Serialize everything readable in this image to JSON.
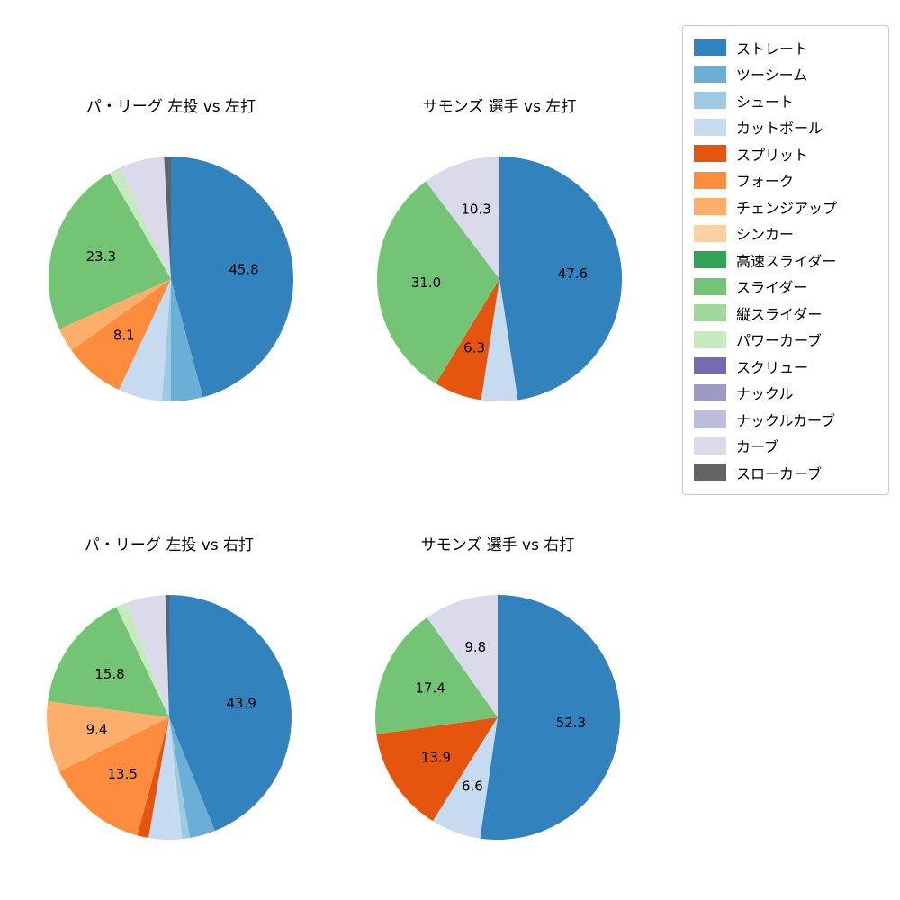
{
  "figure": {
    "background": "#ffffff",
    "text_color": "#000000"
  },
  "palette": {
    "ストレート": "#3182bd",
    "ツーシーム": "#6baed6",
    "シュート": "#9ecae1",
    "カットボール": "#c6dbef",
    "スプリット": "#e6550d",
    "フォーク": "#fd8d3c",
    "チェンジアップ": "#fdae6b",
    "シンカー": "#fdd0a2",
    "高速スライダー": "#31a354",
    "スライダー": "#74c476",
    "縦スライダー": "#a1d99b",
    "パワーカーブ": "#c7e9c0",
    "スクリュー": "#756bb1",
    "ナックル": "#9e9ac8",
    "ナックルカーブ": "#bcbddc",
    "カーブ": "#dadaeb",
    "スローカーブ": "#636363"
  },
  "legend": {
    "position": "top-right",
    "items": [
      {
        "label": "ストレート",
        "color": "#3182bd"
      },
      {
        "label": "ツーシーム",
        "color": "#6baed6"
      },
      {
        "label": "シュート",
        "color": "#9ecae1"
      },
      {
        "label": "カットボール",
        "color": "#c6dbef"
      },
      {
        "label": "スプリット",
        "color": "#e6550d"
      },
      {
        "label": "フォーク",
        "color": "#fd8d3c"
      },
      {
        "label": "チェンジアップ",
        "color": "#fdae6b"
      },
      {
        "label": "シンカー",
        "color": "#fdd0a2"
      },
      {
        "label": "高速スライダー",
        "color": "#31a354"
      },
      {
        "label": "スライダー",
        "color": "#74c476"
      },
      {
        "label": "縦スライダー",
        "color": "#a1d99b"
      },
      {
        "label": "パワーカーブ",
        "color": "#c7e9c0"
      },
      {
        "label": "スクリュー",
        "color": "#756bb1"
      },
      {
        "label": "ナックル",
        "color": "#9e9ac8"
      },
      {
        "label": "ナックルカーブ",
        "color": "#bcbddc"
      },
      {
        "label": "カーブ",
        "color": "#dadaeb"
      },
      {
        "label": "スローカーブ",
        "color": "#636363"
      }
    ]
  },
  "chart_data": [
    {
      "type": "pie",
      "title": "パ・リーグ 左投 vs 左打",
      "start_angle": "top",
      "direction": "clockwise",
      "value_format": "%.1f",
      "slices": [
        {
          "label": "ストレート",
          "value": 45.8,
          "show_value": true
        },
        {
          "label": "ツーシーム",
          "value": 4.2,
          "show_value": false
        },
        {
          "label": "シュート",
          "value": 1.2,
          "show_value": false
        },
        {
          "label": "カットボール",
          "value": 5.8,
          "show_value": false
        },
        {
          "label": "フォーク",
          "value": 8.1,
          "show_value": true
        },
        {
          "label": "チェンジアップ",
          "value": 3.2,
          "show_value": false
        },
        {
          "label": "スライダー",
          "value": 23.3,
          "show_value": true
        },
        {
          "label": "パワーカーブ",
          "value": 1.6,
          "show_value": false
        },
        {
          "label": "カーブ",
          "value": 5.9,
          "show_value": false
        },
        {
          "label": "スローカーブ",
          "value": 0.9,
          "show_value": false
        }
      ]
    },
    {
      "type": "pie",
      "title": "サモンズ 選手 vs 左打",
      "start_angle": "top",
      "direction": "clockwise",
      "value_format": "%.1f",
      "slices": [
        {
          "label": "ストレート",
          "value": 47.6,
          "show_value": true
        },
        {
          "label": "カットボール",
          "value": 4.8,
          "show_value": false
        },
        {
          "label": "スプリット",
          "value": 6.3,
          "show_value": true
        },
        {
          "label": "スライダー",
          "value": 31.0,
          "show_value": true
        },
        {
          "label": "カーブ",
          "value": 10.3,
          "show_value": true
        }
      ]
    },
    {
      "type": "pie",
      "title": "パ・リーグ 左投 vs 右打",
      "start_angle": "top",
      "direction": "clockwise",
      "value_format": "%.1f",
      "slices": [
        {
          "label": "ストレート",
          "value": 43.9,
          "show_value": true
        },
        {
          "label": "ツーシーム",
          "value": 3.4,
          "show_value": false
        },
        {
          "label": "シュート",
          "value": 1.0,
          "show_value": false
        },
        {
          "label": "カットボール",
          "value": 4.4,
          "show_value": false
        },
        {
          "label": "スプリット",
          "value": 1.5,
          "show_value": false
        },
        {
          "label": "フォーク",
          "value": 13.5,
          "show_value": true
        },
        {
          "label": "チェンジアップ",
          "value": 9.4,
          "show_value": true
        },
        {
          "label": "スライダー",
          "value": 15.8,
          "show_value": true
        },
        {
          "label": "パワーカーブ",
          "value": 1.5,
          "show_value": false
        },
        {
          "label": "カーブ",
          "value": 5.1,
          "show_value": false
        },
        {
          "label": "スローカーブ",
          "value": 0.5,
          "show_value": false
        }
      ]
    },
    {
      "type": "pie",
      "title": "サモンズ 選手 vs 右打",
      "start_angle": "top",
      "direction": "clockwise",
      "value_format": "%.1f",
      "slices": [
        {
          "label": "ストレート",
          "value": 52.3,
          "show_value": true
        },
        {
          "label": "カットボール",
          "value": 6.6,
          "show_value": true
        },
        {
          "label": "スプリット",
          "value": 13.9,
          "show_value": true
        },
        {
          "label": "スライダー",
          "value": 17.4,
          "show_value": true
        },
        {
          "label": "カーブ",
          "value": 9.8,
          "show_value": true
        }
      ]
    }
  ]
}
